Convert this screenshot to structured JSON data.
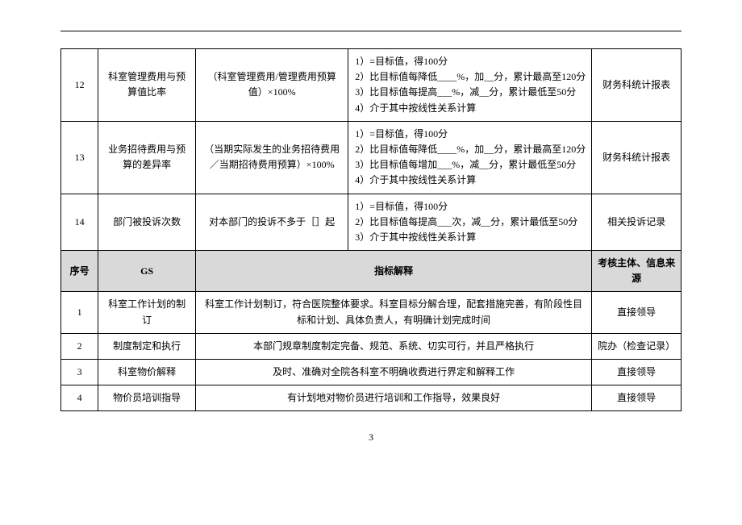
{
  "page_number": "3",
  "top_rows": [
    {
      "num": "12",
      "name": "科室管理费用与预算值比率",
      "formula": "（科室管理费用/管理费用预算值）×100%",
      "criteria": [
        "1）=目标值，得100分",
        "2）比目标值每降低____%，加__分，累计最高至120分",
        "3）比目标值每提高___%，减__分，累计最低至50分",
        "4）介于其中按线性关系计算"
      ],
      "source": "财务科统计报表"
    },
    {
      "num": "13",
      "name": "业务招待费用与预算的差异率",
      "formula": "（当期实际发生的业务招待费用／当期招待费用预算）×100%",
      "criteria": [
        "1）=目标值，得100分",
        "2）比目标值每降低____%，加__分，累计最高至120分",
        "3）比目标值每增加___%，减__分，累计最低至50分",
        "4）介于其中按线性关系计算"
      ],
      "source": "财务科统计报表"
    },
    {
      "num": "14",
      "name": "部门被投诉次数",
      "formula": "对本部门的投诉不多于［］起",
      "criteria": [
        "1）=目标值，得100分",
        "2）比目标值每提高___次，减__分，累计最低至50分",
        "3）介于其中按线性关系计算"
      ],
      "source": "相关投诉记录"
    }
  ],
  "header2": {
    "c1": "序号",
    "c2": "GS",
    "c34": "指标解释",
    "c5": "考核主体、信息来源"
  },
  "gs_rows": [
    {
      "num": "1",
      "name": "科室工作计划的制订",
      "desc": "科室工作计划制订，符合医院整体要求。科室目标分解合理，配套措施完善，有阶段性目标和计划、具体负责人，有明确计划完成时间",
      "source": "直接领导"
    },
    {
      "num": "2",
      "name": "制度制定和执行",
      "desc": "本部门规章制度制定完备、规范、系统、切实可行，并且严格执行",
      "source": "院办（检查记录）"
    },
    {
      "num": "3",
      "name": "科室物价解释",
      "desc": "及时、准确对全院各科室不明确收费进行界定和解释工作",
      "source": "直接领导"
    },
    {
      "num": "4",
      "name": "物价员培训指导",
      "desc": "有计划地对物价员进行培训和工作指导，效果良好",
      "source": "直接领导"
    }
  ]
}
